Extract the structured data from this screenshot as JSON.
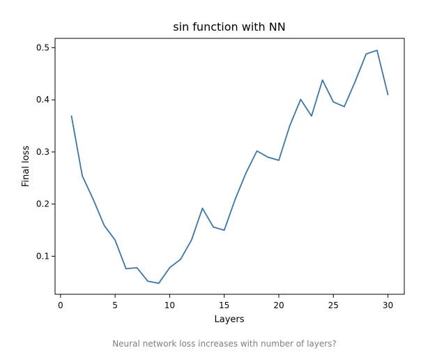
{
  "caption": "Neural network loss increases with number of layers?",
  "chart_data": {
    "type": "line",
    "title": "sin function with NN",
    "xlabel": "Layers",
    "ylabel": "Final loss",
    "xlim": [
      -0.5,
      31.5
    ],
    "ylim": [
      0.027,
      0.518
    ],
    "xticks": [
      0,
      5,
      10,
      15,
      20,
      25,
      30
    ],
    "yticks": [
      0.1,
      0.2,
      0.3,
      0.4,
      0.5
    ],
    "grid": false,
    "series": [
      {
        "color": "#3a75a8",
        "x": [
          1,
          2,
          3,
          4,
          5,
          6,
          7,
          8,
          9,
          10,
          11,
          12,
          13,
          14,
          15,
          16,
          17,
          18,
          19,
          20,
          21,
          22,
          23,
          24,
          25,
          26,
          27,
          28,
          29,
          30
        ],
        "y": [
          0.369,
          0.254,
          0.209,
          0.159,
          0.131,
          0.076,
          0.078,
          0.052,
          0.048,
          0.078,
          0.094,
          0.131,
          0.192,
          0.156,
          0.15,
          0.209,
          0.26,
          0.302,
          0.29,
          0.284,
          0.35,
          0.401,
          0.369,
          0.438,
          0.396,
          0.387,
          0.435,
          0.488,
          0.495,
          0.41
        ]
      }
    ]
  }
}
